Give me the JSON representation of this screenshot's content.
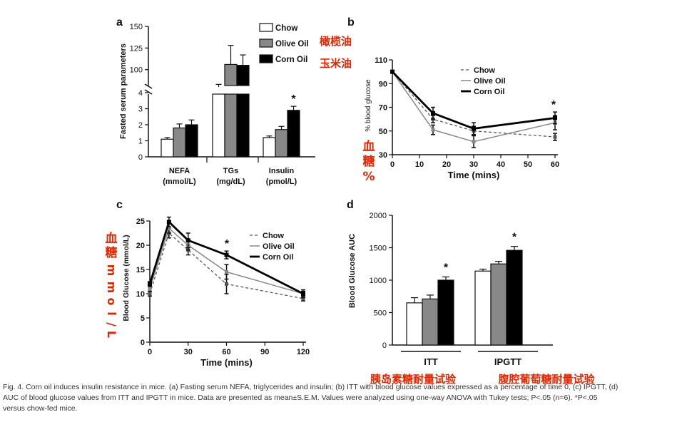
{
  "chart_data": [
    {
      "panel_letter": "a",
      "type": "bar",
      "ylabel": "Fasted serum parameters",
      "legend": [
        "Chow",
        "Olive Oil",
        "Corn Oil"
      ],
      "legend_placement": "top-right",
      "annotations": [
        "橄榄油",
        "玉米油"
      ],
      "upper_axis": {
        "ylim": [
          80,
          150
        ],
        "ticks": [
          "150",
          "125",
          "100"
        ]
      },
      "lower_axis": {
        "ylim": [
          0,
          4
        ],
        "ticks": [
          "4",
          "3",
          "2",
          "1",
          "0"
        ]
      },
      "groups": [
        {
          "label": "NEFA",
          "unit": "(mmol/L)",
          "axis": "lower",
          "values": [
            1.1,
            1.8,
            2.0
          ],
          "errors": [
            0.1,
            0.25,
            0.3
          ],
          "star": ""
        },
        {
          "label": "TGs",
          "unit": "(mg/dL)",
          "axis": "upper",
          "values": [
            80,
            106,
            105
          ],
          "errors": [
            3,
            22,
            12
          ],
          "star": ""
        },
        {
          "label": "Insulin",
          "unit": "(pmol/L)",
          "axis": "lower",
          "values": [
            1.2,
            1.7,
            2.9
          ],
          "errors": [
            0.1,
            0.2,
            0.25
          ],
          "star": "*"
        }
      ]
    },
    {
      "panel_letter": "b",
      "type": "line",
      "xlabel": "Time (mins)",
      "ylabel": "% blood glucose",
      "side_annotation": "血糖%",
      "x": [
        0,
        15,
        30,
        60
      ],
      "xlim": [
        0,
        60
      ],
      "ylim": [
        30,
        110
      ],
      "xticks": [
        "0",
        "10",
        "20",
        "30",
        "40",
        "50",
        "60"
      ],
      "yticks": [
        "30",
        "50",
        "70",
        "90",
        "110"
      ],
      "legend_placement": "top-right",
      "series": [
        {
          "name": "Chow",
          "values": [
            100,
            60,
            50,
            45
          ],
          "errors": [
            0,
            3,
            4,
            3
          ]
        },
        {
          "name": "Olive Oil",
          "values": [
            100,
            51,
            41,
            57
          ],
          "errors": [
            0,
            4,
            5,
            6
          ]
        },
        {
          "name": "Corn Oil",
          "values": [
            100,
            65,
            52,
            61
          ],
          "errors": [
            0,
            5,
            5,
            5
          ]
        }
      ],
      "star": "*"
    },
    {
      "panel_letter": "c",
      "type": "line",
      "xlabel": "Time (mins)",
      "ylabel": "Blood Glucose (mmol/L)",
      "side_annotation": "血糖mmol/L",
      "x": [
        0,
        15,
        30,
        60,
        120
      ],
      "xlim": [
        0,
        120
      ],
      "ylim": [
        0,
        25
      ],
      "xticks": [
        "0",
        "30",
        "60",
        "90",
        "120"
      ],
      "yticks": [
        "0",
        "5",
        "10",
        "15",
        "20",
        "25"
      ],
      "legend_placement": "top-right",
      "series": [
        {
          "name": "Chow",
          "values": [
            10,
            22.5,
            19,
            12,
            9
          ],
          "errors": [
            0.5,
            1,
            1,
            2,
            0.5
          ]
        },
        {
          "name": "Olive Oil",
          "values": [
            11,
            23.5,
            20,
            14.5,
            10
          ],
          "errors": [
            0.5,
            1,
            1,
            1.5,
            0.5
          ]
        },
        {
          "name": "Corn Oil",
          "values": [
            12,
            24.8,
            21,
            18,
            10
          ],
          "errors": [
            0.5,
            1,
            1.5,
            0.8,
            0.8
          ]
        }
      ],
      "star": "*"
    },
    {
      "panel_letter": "d",
      "type": "bar",
      "ylabel": "Blood Glucose AUC",
      "ylim": [
        0,
        2000
      ],
      "yticks": [
        "0",
        "500",
        "1000",
        "1500",
        "2000"
      ],
      "groups": [
        {
          "label": "ITT",
          "annotation": "胰岛素糖耐量试验",
          "values": [
            650,
            710,
            1000
          ],
          "errors": [
            80,
            60,
            50
          ],
          "star": "*"
        },
        {
          "label": "IPGTT",
          "annotation": "腹腔葡萄糖耐量试验",
          "values": [
            1140,
            1250,
            1460
          ],
          "errors": [
            30,
            40,
            60
          ],
          "star": "*"
        }
      ]
    }
  ],
  "colors": {
    "chow": "#ffffff",
    "olive_oil": "#888888",
    "corn_oil": "#000000",
    "annotation": "#e32600"
  },
  "caption": [
    "Fig. 4. Corn oil induces insulin resistance in mice. (a) Fasting serum NEFA, triglycerides and insulin; (b) ITT with blood glucose values expressed as a percentage of time 0, (c) IPGTT, (d)",
    "AUC of blood glucose values from ITT and IPGTT in mice. Data are presented as mean±S.E.M. Values were analyzed using one-way ANOVA with Tukey tests; P<.05 (n=6). *P<.05",
    "versus chow-fed mice."
  ]
}
